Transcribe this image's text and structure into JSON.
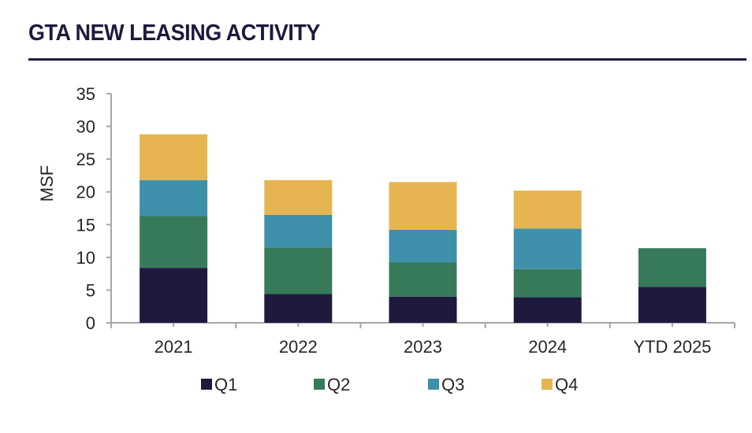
{
  "header": {
    "title": "GTA NEW LEASING ACTIVITY"
  },
  "chart_data": {
    "type": "bar",
    "stacked": true,
    "title": "GTA NEW LEASING ACTIVITY",
    "xlabel": "",
    "ylabel": "MSF",
    "ylim": [
      0,
      35
    ],
    "yticks": [
      0,
      5,
      10,
      15,
      20,
      25,
      30,
      35
    ],
    "grid": false,
    "legend_position": "bottom",
    "categories": [
      "2021",
      "2022",
      "2023",
      "2024",
      "YTD 2025"
    ],
    "series": [
      {
        "name": "Q1",
        "color": "#1e1a3e",
        "values": [
          8.4,
          4.4,
          4.0,
          3.9,
          5.5
        ]
      },
      {
        "name": "Q2",
        "color": "#377a5a",
        "values": [
          7.9,
          7.1,
          5.2,
          4.3,
          5.9
        ]
      },
      {
        "name": "Q3",
        "color": "#3f90aa",
        "values": [
          5.5,
          5.0,
          5.0,
          6.2,
          null
        ]
      },
      {
        "name": "Q4",
        "color": "#e6b551",
        "values": [
          7.0,
          5.3,
          7.3,
          5.8,
          null
        ]
      }
    ],
    "totals": [
      28.8,
      21.8,
      21.5,
      20.2,
      11.4
    ]
  }
}
